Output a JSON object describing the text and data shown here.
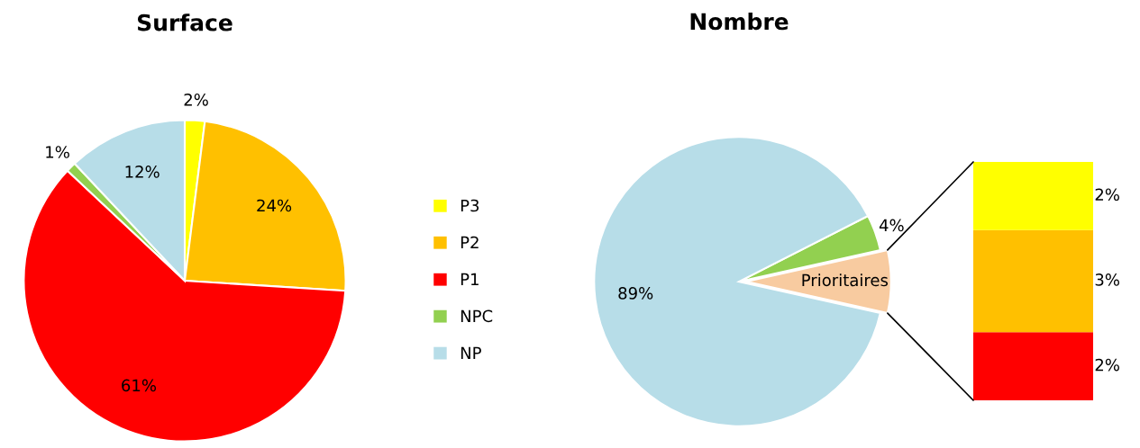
{
  "chart_data": [
    {
      "type": "pie",
      "title": "Surface",
      "categories": [
        "P3",
        "P2",
        "P1",
        "NPC",
        "NP"
      ],
      "values": [
        2,
        24,
        61,
        1,
        12
      ],
      "colors": [
        "#ffff00",
        "#ffc000",
        "#ff0000",
        "#92d050",
        "#b7dde8"
      ],
      "value_labels": [
        "2%",
        "24%",
        "61%",
        "1%",
        "12%"
      ],
      "legend": "right"
    },
    {
      "type": "pie",
      "title": "Nombre",
      "categories": [
        "Prioritaires",
        null,
        null
      ],
      "values": [
        7,
        4,
        89
      ],
      "colors": [
        "#f8cba0",
        "#92d050",
        "#b7dde8"
      ],
      "value_labels": [
        null,
        "4%",
        "89%"
      ]
    },
    {
      "type": "bar",
      "stacked": true,
      "categories": [
        null
      ],
      "series": [
        {
          "color": "#ff0000",
          "values": [
            2
          ],
          "value_labels": [
            "2%"
          ]
        },
        {
          "color": "#ffc000",
          "values": [
            3
          ],
          "value_labels": [
            "3%"
          ]
        },
        {
          "color": "#ffff00",
          "values": [
            2
          ],
          "value_labels": [
            "2%"
          ]
        }
      ]
    }
  ]
}
